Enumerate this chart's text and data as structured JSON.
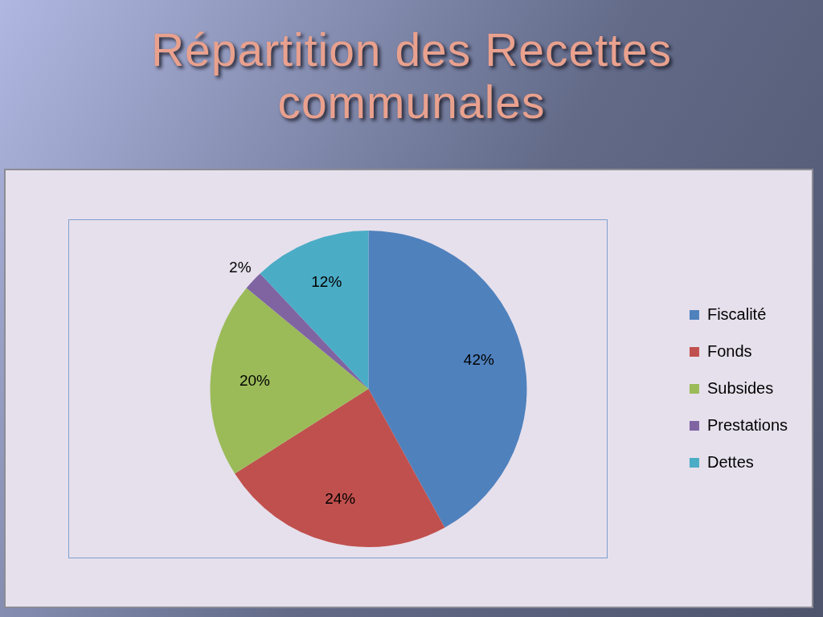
{
  "chart_data": {
    "type": "pie",
    "title": "Répartition des Recettes communales",
    "categories": [
      "Fiscalité",
      "Fonds",
      "Subsides",
      "Prestations",
      "Dettes"
    ],
    "values": [
      42,
      24,
      20,
      2,
      12
    ],
    "colors": [
      "#4f81bd",
      "#c0504d",
      "#9bbb59",
      "#8064a2",
      "#4bacc6"
    ],
    "value_labels": [
      "42%",
      "24%",
      "20%",
      "2%",
      "12%"
    ],
    "legend": "right"
  }
}
